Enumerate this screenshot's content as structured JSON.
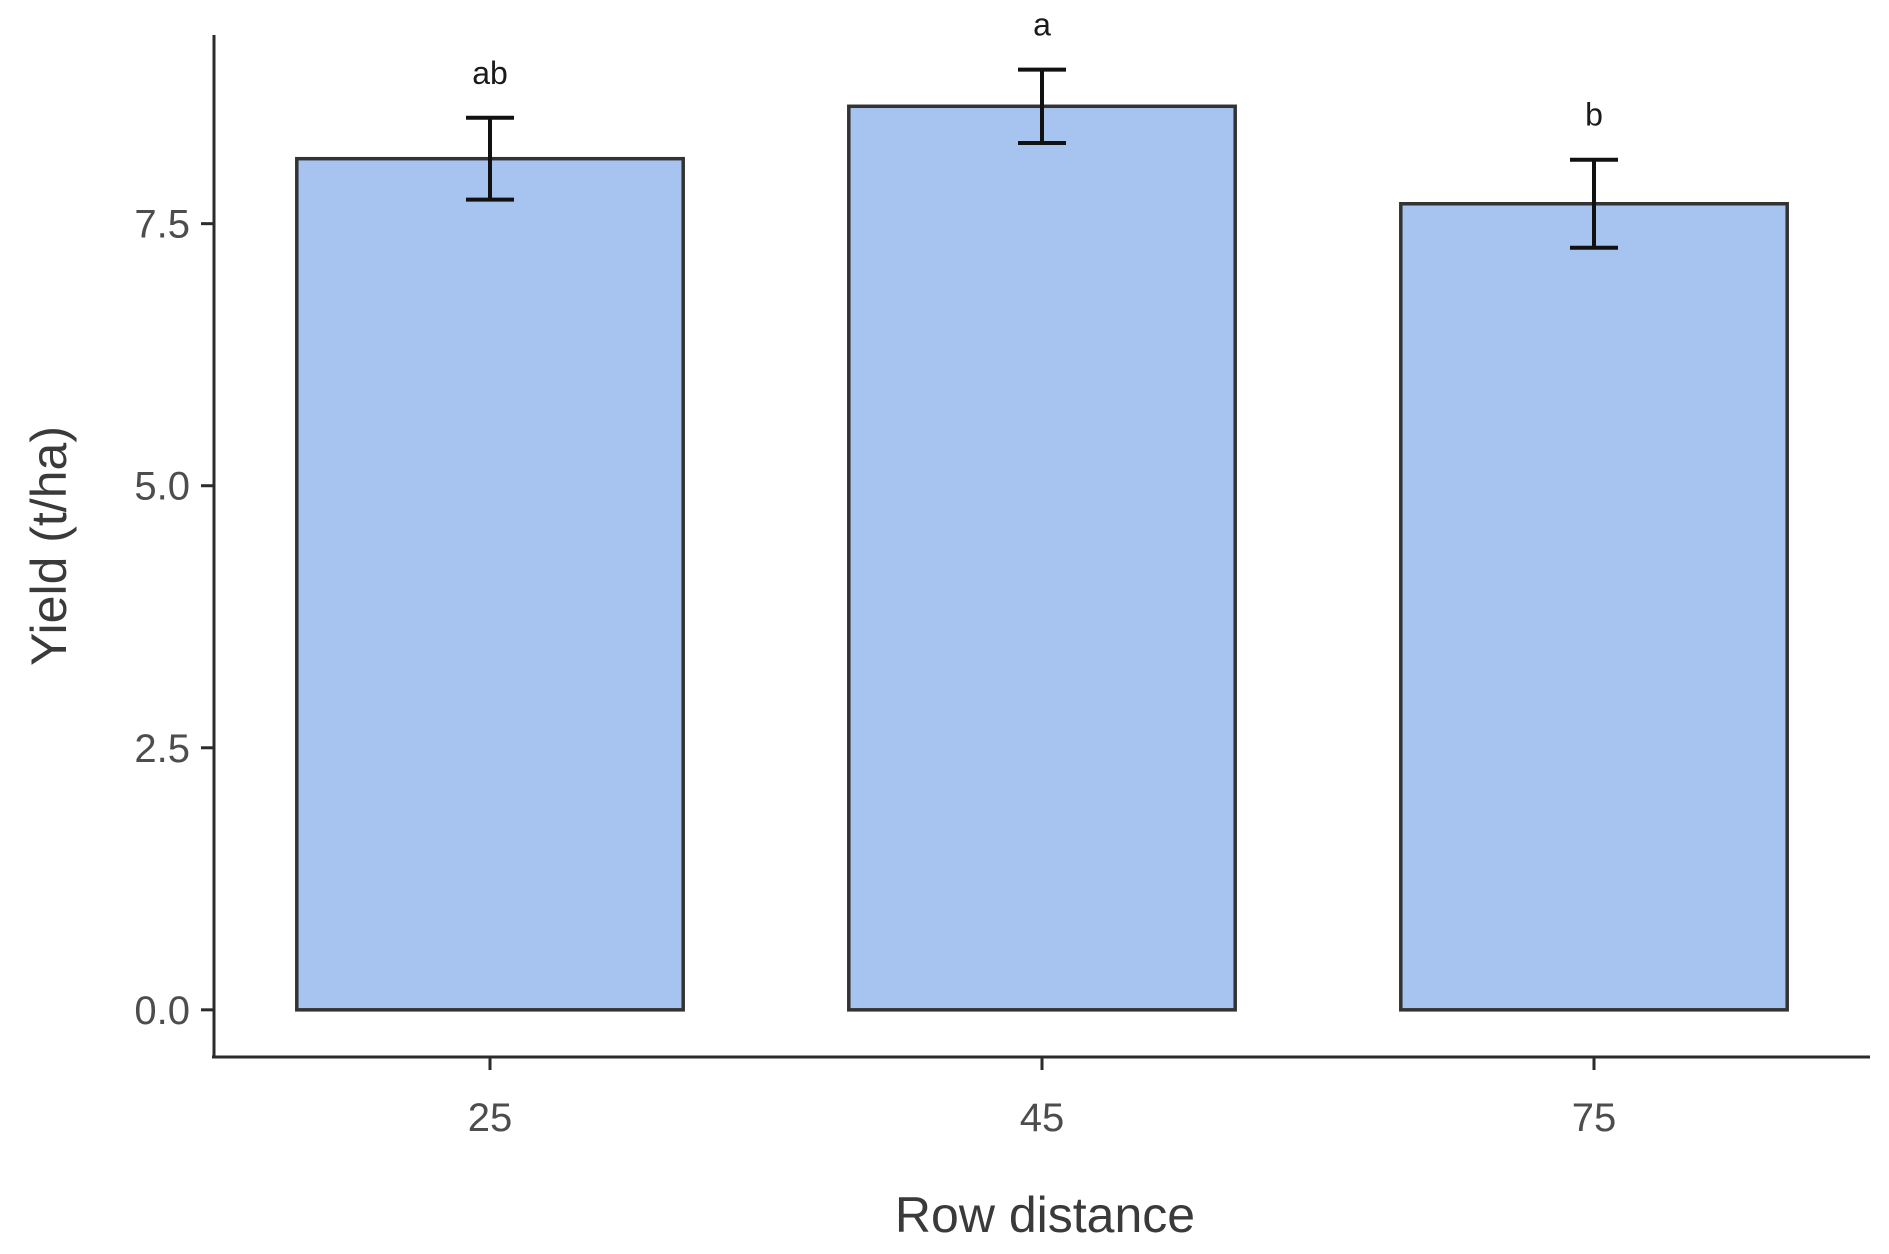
{
  "chart_data": {
    "type": "bar",
    "categories": [
      "25",
      "45",
      "75"
    ],
    "values": [
      8.12,
      8.62,
      7.69
    ],
    "error": [
      0.39,
      0.35,
      0.42
    ],
    "significance": [
      "ab",
      "a",
      "b"
    ],
    "xlabel": "Row distance",
    "ylabel": "Yield (t/ha)",
    "ylim": [
      -0.45,
      9.3
    ],
    "yticks": [
      0.0,
      2.5,
      5.0,
      7.5
    ],
    "ytick_labels": [
      "0.0",
      "2.5",
      "5.0",
      "7.5"
    ],
    "grid": false,
    "legend": "none",
    "colors": {
      "bar_fill": "#a7c4f1",
      "bar_stroke": "#333333",
      "axis": "#2b2b2b"
    }
  }
}
